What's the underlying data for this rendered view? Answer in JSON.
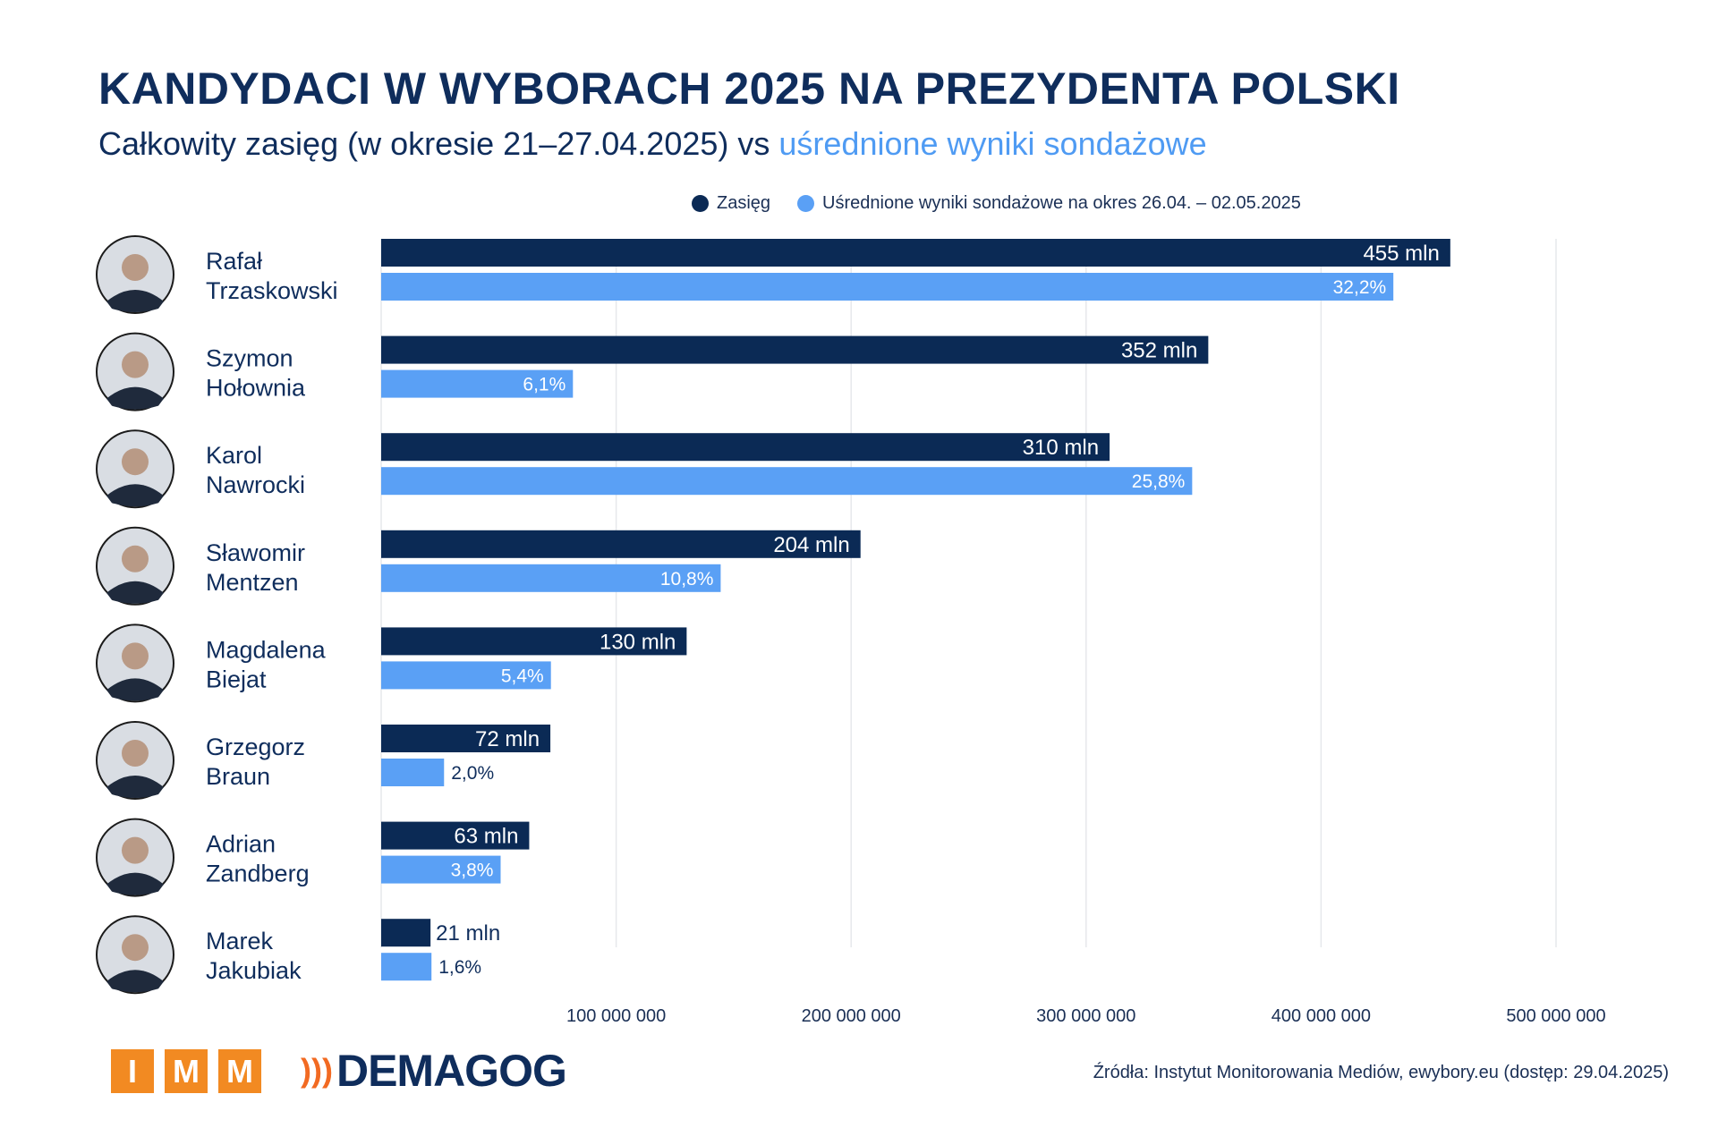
{
  "title": "KANDYDACI W WYBORACH 2025 NA PREZYDENTA POLSKI",
  "subtitle_main": "Całkowity zasięg (w okresie 21–27.04.2025) vs ",
  "subtitle_highlight": "uśrednione wyniki sondażowe",
  "footer": {
    "source": "Źródła: Instytut Monitorowania Mediów, ewybory.eu (dostęp: 29.04.2025)",
    "logo_imm": [
      "I",
      "M",
      "M"
    ],
    "logo_demagog": "DEMAGOG"
  },
  "chart_data": {
    "type": "bar",
    "orientation": "horizontal",
    "legend_position": "top",
    "grid": true,
    "colors": {
      "reach": "#0b2a55",
      "polls": "#5aa0f5",
      "title": "#0f2d5c",
      "accent_orange": "#f28a22"
    },
    "categories": [
      {
        "first": "Rafał",
        "last": "Trzaskowski"
      },
      {
        "first": "Szymon",
        "last": "Hołownia"
      },
      {
        "first": "Karol",
        "last": "Nawrocki"
      },
      {
        "first": "Sławomir",
        "last": "Mentzen"
      },
      {
        "first": "Magdalena",
        "last": "Biejat"
      },
      {
        "first": "Grzegorz",
        "last": "Braun"
      },
      {
        "first": "Adrian",
        "last": "Zandberg"
      },
      {
        "first": "Marek",
        "last": "Jakubiak"
      }
    ],
    "series": [
      {
        "name": "Zasięg",
        "values": [
          455000000,
          352000000,
          310000000,
          204000000,
          130000000,
          72000000,
          63000000,
          21000000
        ],
        "labels": [
          "455 mln",
          "352 mln",
          "310 mln",
          "204 mln",
          "130 mln",
          "72 mln",
          "63 mln",
          "21 mln"
        ]
      },
      {
        "name": "Uśrednione wyniki sondażowe na okres 26.04. – 02.05.2025",
        "values": [
          32.2,
          6.1,
          25.8,
          10.8,
          5.4,
          2.0,
          3.8,
          1.6
        ],
        "labels": [
          "32,2%",
          "6,1%",
          "25,8%",
          "10,8%",
          "5,4%",
          "2,0%",
          "3,8%",
          "1,6%"
        ]
      }
    ],
    "x_ticks": [
      100000000,
      200000000,
      300000000,
      400000000,
      500000000
    ],
    "x_tick_labels": [
      "100 000 000",
      "200 000 000",
      "300 000 000",
      "400 000 000",
      "500 000 000"
    ],
    "xlim": [
      0,
      500000000
    ]
  }
}
